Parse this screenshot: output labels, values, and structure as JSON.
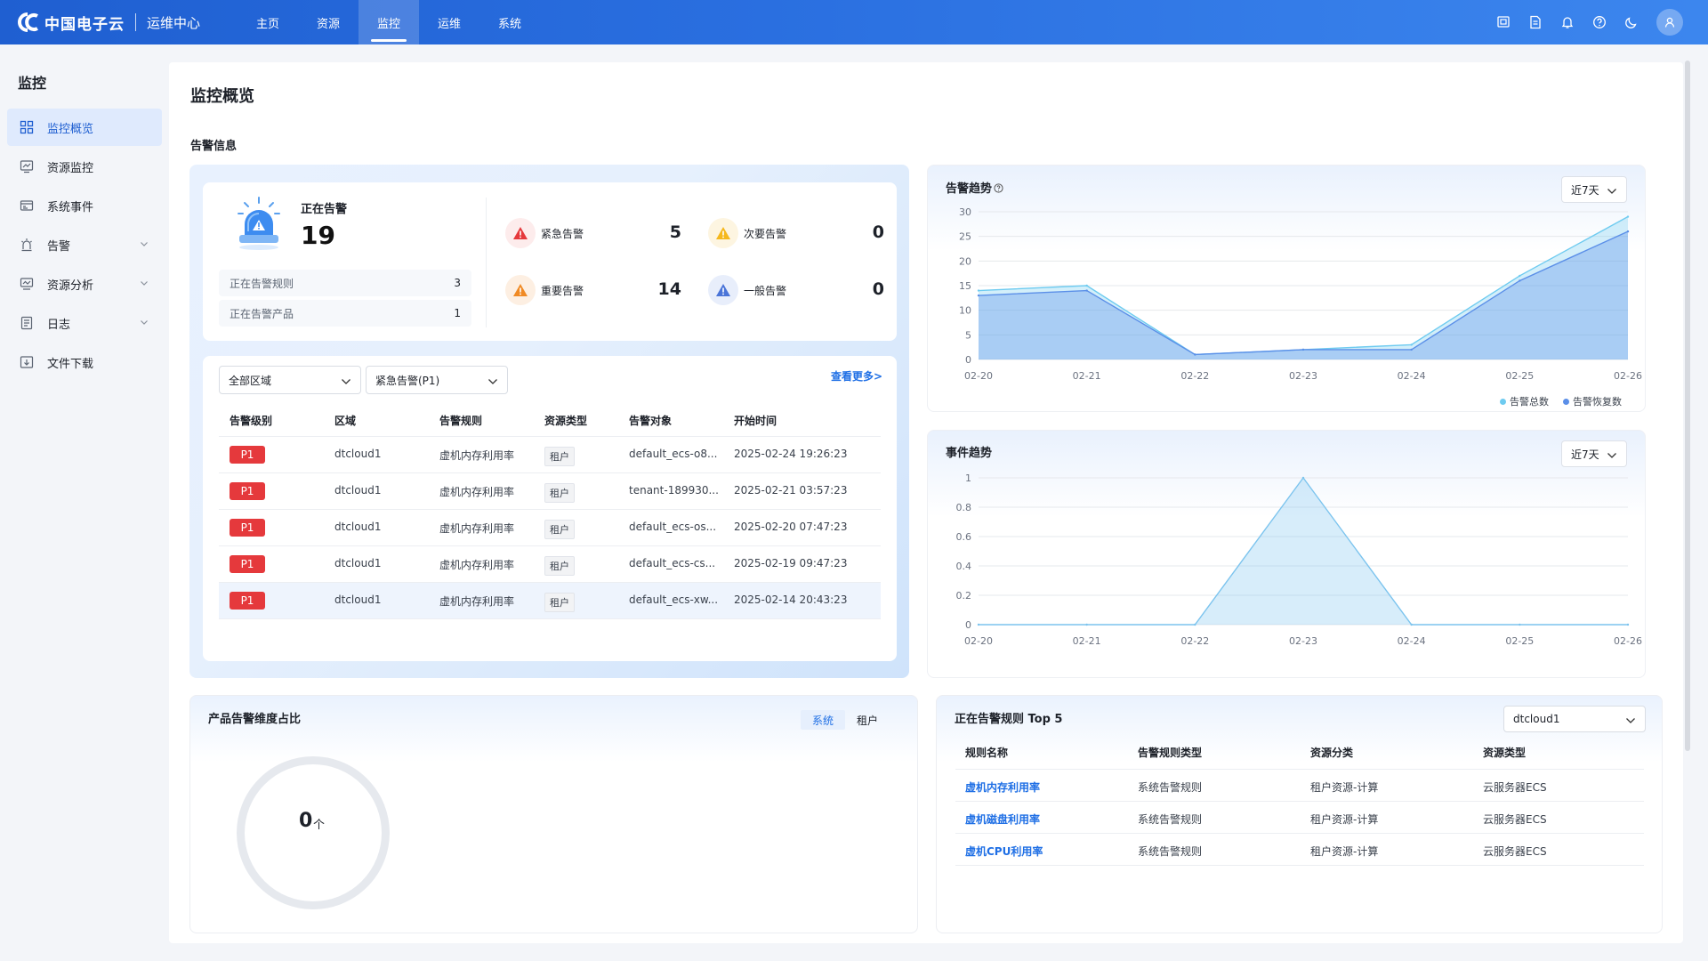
{
  "header": {
    "logo_text": "中国电子云",
    "app_name": "运维中心",
    "nav": [
      {
        "label": "主页"
      },
      {
        "label": "资源"
      },
      {
        "label": "监控"
      },
      {
        "label": "运维"
      },
      {
        "label": "系统"
      }
    ]
  },
  "sidebar": {
    "title": "监控",
    "items": [
      {
        "label": "监控概览"
      },
      {
        "label": "资源监控"
      },
      {
        "label": "系统事件"
      },
      {
        "label": "告警"
      },
      {
        "label": "资源分析"
      },
      {
        "label": "日志"
      },
      {
        "label": "文件下载"
      }
    ]
  },
  "page": {
    "title": "监控概览",
    "section_title": "告警信息"
  },
  "alarm": {
    "active_label": "正在告警",
    "active_count": "19",
    "rules_label": "正在告警规则",
    "rules_value": "3",
    "products_label": "正在告警产品",
    "products_value": "1",
    "levels": [
      {
        "label": "紧急告警",
        "value": "5",
        "color": "#e5393c"
      },
      {
        "label": "次要告警",
        "value": "0",
        "color": "#f5b81d"
      },
      {
        "label": "重要告警",
        "value": "14",
        "color": "#f08a24"
      },
      {
        "label": "一般告警",
        "value": "0",
        "color": "#4a74d8"
      }
    ]
  },
  "alert_table": {
    "region_filter": "全部区域",
    "level_filter": "紧急告警(P1)",
    "more_link": "查看更多>",
    "columns": [
      "告警级别",
      "区域",
      "告警规则",
      "资源类型",
      "告警对象",
      "开始时间"
    ],
    "rows": [
      {
        "level": "P1",
        "region": "dtcloud1",
        "rule": "虚机内存利用率",
        "type": "租户",
        "object": "default_ecs-o8...",
        "time": "2025-02-24 19:26:23"
      },
      {
        "level": "P1",
        "region": "dtcloud1",
        "rule": "虚机内存利用率",
        "type": "租户",
        "object": "tenant-189930...",
        "time": "2025-02-21 03:57:23"
      },
      {
        "level": "P1",
        "region": "dtcloud1",
        "rule": "虚机内存利用率",
        "type": "租户",
        "object": "default_ecs-os...",
        "time": "2025-02-20 07:47:23"
      },
      {
        "level": "P1",
        "region": "dtcloud1",
        "rule": "虚机内存利用率",
        "type": "租户",
        "object": "default_ecs-cs...",
        "time": "2025-02-19 09:47:23"
      },
      {
        "level": "P1",
        "region": "dtcloud1",
        "rule": "虚机内存利用率",
        "type": "租户",
        "object": "default_ecs-xw...",
        "time": "2025-02-14 20:43:23"
      }
    ]
  },
  "alarm_trend": {
    "title": "告警趋势",
    "range": "近7天"
  },
  "event_trend": {
    "title": "事件趋势",
    "range": "近7天"
  },
  "chart_data": [
    {
      "type": "area",
      "title": "告警趋势",
      "x": [
        "02-20",
        "02-21",
        "02-22",
        "02-23",
        "02-24",
        "02-25",
        "02-26"
      ],
      "ylim": [
        0,
        30
      ],
      "yticks": [
        0,
        5,
        10,
        15,
        20,
        25,
        30
      ],
      "legend_position": "bottom-right",
      "grid": true,
      "series": [
        {
          "name": "告警总数",
          "color": "#6ecbf0",
          "values": [
            14,
            15,
            1,
            2,
            3,
            17,
            29
          ]
        },
        {
          "name": "告警恢复数",
          "color": "#5b8fe8",
          "values": [
            13,
            14,
            1,
            2,
            2,
            16,
            26
          ]
        }
      ]
    },
    {
      "type": "area",
      "title": "事件趋势",
      "x": [
        "02-20",
        "02-21",
        "02-22",
        "02-23",
        "02-24",
        "02-25",
        "02-26"
      ],
      "ylim": [
        0,
        1
      ],
      "yticks": [
        0,
        0.2,
        0.4,
        0.6,
        0.8,
        1
      ],
      "grid": true,
      "series": [
        {
          "color": "#7cc4ee",
          "values": [
            0,
            0,
            0,
            1,
            0,
            0,
            0
          ]
        }
      ]
    }
  ],
  "product_ratio": {
    "title": "产品告警维度占比",
    "toggle": [
      "系统",
      "租户"
    ],
    "total": "0",
    "unit": "个"
  },
  "top_rules": {
    "title": "正在告警规则 Top 5",
    "region": "dtcloud1",
    "columns": [
      "规则名称",
      "告警规则类型",
      "资源分类",
      "资源类型"
    ],
    "rows": [
      {
        "name": "虚机内存利用率",
        "rule_type": "系统告警规则",
        "category": "租户资源-计算",
        "res_type": "云服务器ECS"
      },
      {
        "name": "虚机磁盘利用率",
        "rule_type": "系统告警规则",
        "category": "租户资源-计算",
        "res_type": "云服务器ECS"
      },
      {
        "name": "虚机CPU利用率",
        "rule_type": "系统告警规则",
        "category": "租户资源-计算",
        "res_type": "云服务器ECS"
      }
    ]
  }
}
